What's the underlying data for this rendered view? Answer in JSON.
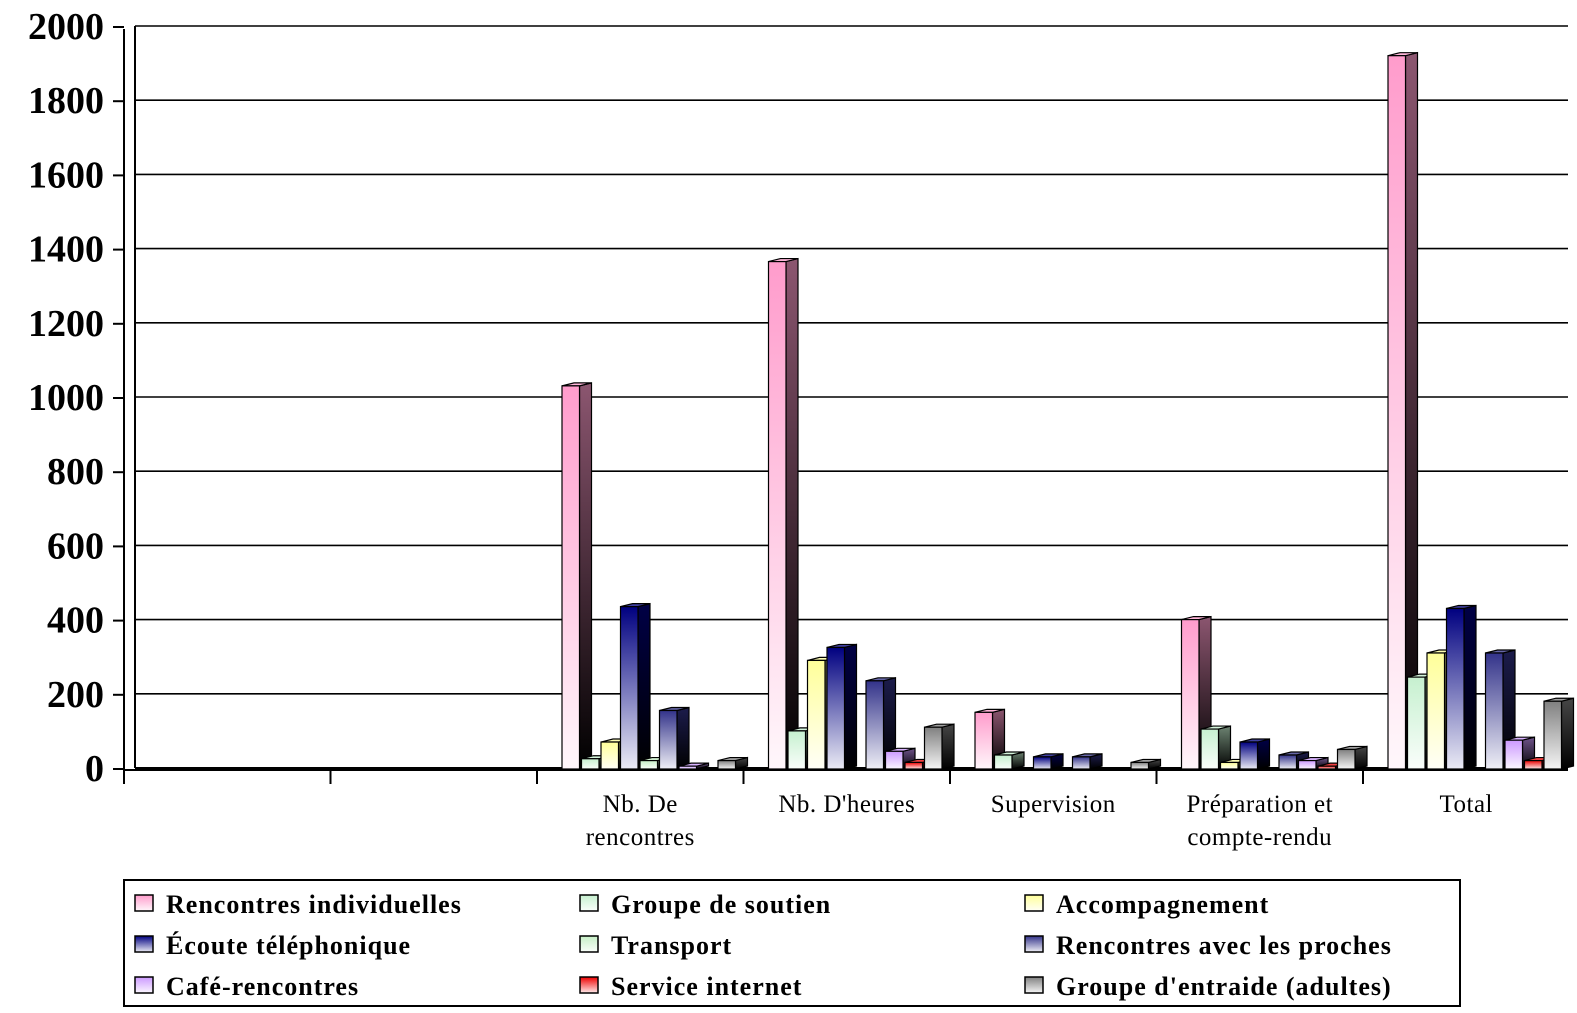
{
  "chart_data": {
    "type": "bar",
    "title": "",
    "xlabel": "",
    "ylabel": "",
    "ylim": [
      0,
      2000
    ],
    "yticks": [
      "0",
      "200",
      "400",
      "600",
      "800",
      "1000",
      "1200",
      "1400",
      "1600",
      "1800",
      "2000"
    ],
    "grid": true,
    "legend_position": "bottom",
    "categories": [
      {
        "lines": [
          "",
          ""
        ]
      },
      {
        "lines": [
          "",
          ""
        ]
      },
      {
        "lines": [
          "Nb. De",
          "rencontres"
        ]
      },
      {
        "lines": [
          "Nb. D'heures",
          ""
        ]
      },
      {
        "lines": [
          "Supervision",
          ""
        ]
      },
      {
        "lines": [
          "Préparation et",
          "compte-rendu"
        ]
      },
      {
        "lines": [
          "Total",
          ""
        ]
      }
    ],
    "series": [
      {
        "name": "Rencontres individuelles",
        "color": "#ff9ccc",
        "values": [
          0,
          0,
          1030,
          1365,
          150,
          400,
          1920
        ]
      },
      {
        "name": "Groupe de soutien",
        "color": "#c6f0cf",
        "values": [
          0,
          0,
          25,
          100,
          35,
          105,
          245
        ]
      },
      {
        "name": "Accompagnement",
        "color": "#ffff99",
        "values": [
          0,
          0,
          70,
          290,
          0,
          15,
          310
        ]
      },
      {
        "name": "Écoute téléphonique",
        "color": "#000080",
        "values": [
          0,
          0,
          435,
          325,
          30,
          70,
          430
        ]
      },
      {
        "name": "Transport",
        "color": "#c6efc6",
        "values": [
          0,
          0,
          20,
          0,
          0,
          0,
          0
        ]
      },
      {
        "name": "Rencontres avec les proches",
        "color": "#33338a",
        "values": [
          0,
          0,
          155,
          235,
          30,
          35,
          310
        ]
      },
      {
        "name": "Café-rencontres",
        "color": "#cc99ff",
        "values": [
          0,
          0,
          5,
          45,
          0,
          20,
          75
        ]
      },
      {
        "name": "Service internet",
        "color": "#ee0000",
        "values": [
          0,
          0,
          0,
          15,
          0,
          5,
          20
        ]
      },
      {
        "name": "Groupe d'entraide (adultes)",
        "color": "#808080",
        "values": [
          0,
          0,
          20,
          110,
          15,
          50,
          180
        ]
      }
    ]
  }
}
